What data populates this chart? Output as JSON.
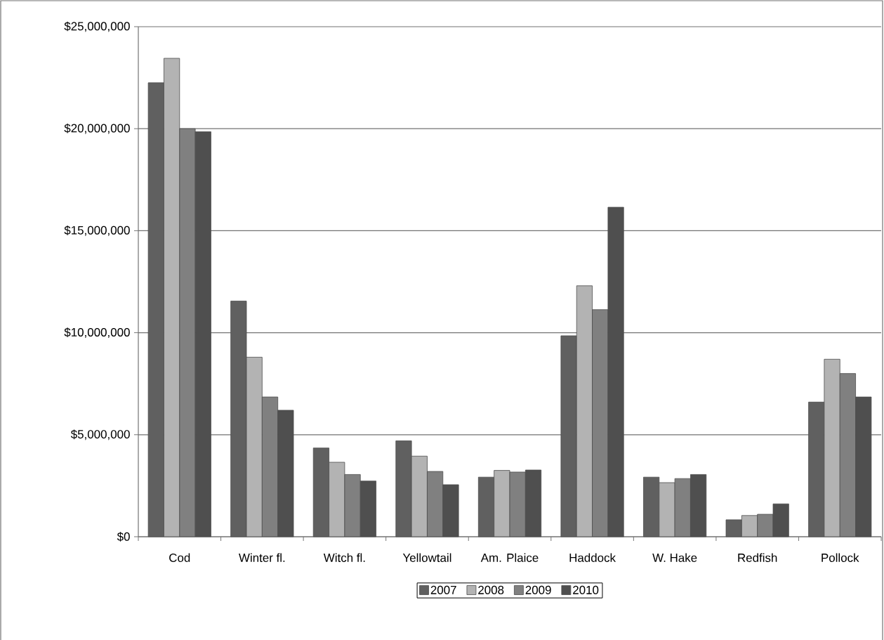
{
  "chart_data": {
    "type": "bar",
    "categories": [
      "Cod",
      "Winter fl.",
      "Witch fl.",
      "Yellowtail",
      "Am. Plaice",
      "Haddock",
      "W. Hake",
      "Redfish",
      "Pollock"
    ],
    "series": [
      {
        "name": "2007",
        "color": "#606060",
        "values": [
          22250000,
          11550000,
          4350000,
          4700000,
          2920000,
          9850000,
          2920000,
          830000,
          6600000
        ]
      },
      {
        "name": "2008",
        "color": "#b3b3b3",
        "values": [
          23450000,
          8800000,
          3650000,
          3950000,
          3250000,
          12300000,
          2650000,
          1040000,
          8700000
        ]
      },
      {
        "name": "2009",
        "color": "#808080",
        "values": [
          20000000,
          6850000,
          3050000,
          3200000,
          3170000,
          11130000,
          2850000,
          1100000,
          8000000
        ]
      },
      {
        "name": "2010",
        "color": "#4f4f4f",
        "values": [
          19850000,
          6200000,
          2730000,
          2550000,
          3270000,
          16150000,
          3050000,
          1610000,
          6850000
        ]
      }
    ],
    "ylim": [
      0,
      25000000
    ],
    "yticks": [
      {
        "value": 0,
        "label": "$0"
      },
      {
        "value": 5000000,
        "label": "$5,000,000"
      },
      {
        "value": 10000000,
        "label": "$10,000,000"
      },
      {
        "value": 15000000,
        "label": "$15,000,000"
      },
      {
        "value": 20000000,
        "label": "$20,000,000"
      },
      {
        "value": 25000000,
        "label": "$25,000,000"
      }
    ],
    "grid": "y",
    "legend": "bottom"
  }
}
